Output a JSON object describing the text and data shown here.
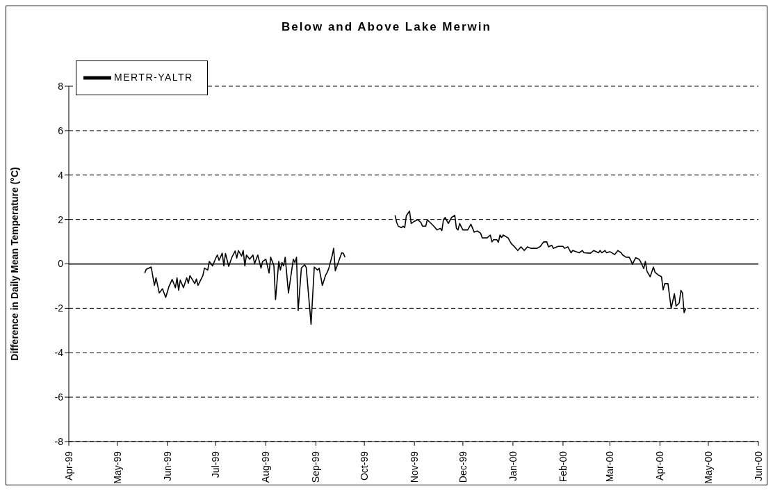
{
  "chart_data": {
    "type": "line",
    "title": "Below and Above Lake Merwin",
    "ylabel": "Difference in Daily Mean Temperature (°C)",
    "xlim": [
      "1999-04-01",
      "2000-06-01"
    ],
    "xticks": [
      {
        "value": "1999-04-01",
        "label": "Apr-99"
      },
      {
        "value": "1999-05-01",
        "label": "May-99"
      },
      {
        "value": "1999-06-01",
        "label": "Jun-99"
      },
      {
        "value": "1999-07-01",
        "label": "Jul-99"
      },
      {
        "value": "1999-08-01",
        "label": "Aug-99"
      },
      {
        "value": "1999-09-01",
        "label": "Sep-99"
      },
      {
        "value": "1999-10-01",
        "label": "Oct-99"
      },
      {
        "value": "1999-11-01",
        "label": "Nov-99"
      },
      {
        "value": "1999-12-01",
        "label": "Dec-99"
      },
      {
        "value": "2000-01-01",
        "label": "Jan-00"
      },
      {
        "value": "2000-02-01",
        "label": "Feb-00"
      },
      {
        "value": "2000-03-01",
        "label": "Mar-00"
      },
      {
        "value": "2000-04-01",
        "label": "Apr-00"
      },
      {
        "value": "2000-05-01",
        "label": "May-00"
      },
      {
        "value": "2000-06-01",
        "label": "Jun-00"
      }
    ],
    "ylim": [
      -8,
      8
    ],
    "yticks": [
      -8,
      -6,
      -4,
      -2,
      0,
      2,
      4,
      6,
      8
    ],
    "grid": "y",
    "legend": "top left",
    "marker": "none",
    "line_style": "solid",
    "ref_lines": [
      {
        "axis": "y",
        "value": 0,
        "color": "#808080"
      }
    ],
    "x": [
      "1999-05-18",
      "1999-05-19",
      "1999-05-22",
      "1999-05-24",
      "1999-05-25",
      "1999-05-27",
      "1999-05-29",
      "1999-05-31",
      "1999-06-02",
      "1999-06-04",
      "1999-06-06",
      "1999-06-07",
      "1999-06-08",
      "1999-06-09",
      "1999-06-11",
      "1999-06-13",
      "1999-06-14",
      "1999-06-15",
      "1999-06-18",
      "1999-06-19",
      "1999-06-20",
      "1999-06-23",
      "1999-06-24",
      "1999-06-26",
      "1999-06-27",
      "1999-06-29",
      "1999-07-01",
      "1999-07-02",
      "1999-07-03",
      "1999-07-05",
      "1999-07-06",
      "1999-07-07",
      "1999-07-09",
      "1999-07-11",
      "1999-07-13",
      "1999-07-14",
      "1999-07-15",
      "1999-07-17",
      "1999-07-18",
      "1999-07-19",
      "1999-07-20",
      "1999-07-22",
      "1999-07-24",
      "1999-07-25",
      "1999-07-27",
      "1999-07-29",
      "1999-07-30",
      "1999-08-01",
      "1999-08-03",
      "1999-08-04",
      "1999-08-06",
      "1999-08-07",
      "1999-08-09",
      "1999-08-10",
      "1999-08-11",
      "1999-08-12",
      "1999-08-13",
      "1999-08-15",
      "1999-08-18",
      "1999-08-19",
      "1999-08-20",
      "1999-08-21",
      "1999-08-23",
      "1999-08-25",
      "1999-08-26",
      "1999-08-29",
      "1999-08-31",
      "1999-09-02",
      "1999-09-03",
      "1999-09-05",
      "1999-09-07",
      "1999-09-08",
      "1999-09-09",
      "1999-09-11",
      "1999-09-12",
      "1999-09-13",
      "1999-09-16",
      "1999-09-17",
      "1999-09-18",
      "1999-09-19",
      "1999-10-05",
      "1999-10-20",
      "1999-10-21",
      "1999-10-22",
      "1999-10-24",
      "1999-10-25",
      "1999-10-26",
      "1999-10-27",
      "1999-10-29",
      "1999-10-30",
      "1999-11-01",
      "1999-11-03",
      "1999-11-05",
      "1999-11-06",
      "1999-11-08",
      "1999-11-09",
      "1999-11-13",
      "1999-11-15",
      "1999-11-17",
      "1999-11-18",
      "1999-11-19",
      "1999-11-20",
      "1999-11-22",
      "1999-11-24",
      "1999-11-26",
      "1999-11-27",
      "1999-11-28",
      "1999-11-29",
      "1999-12-01",
      "1999-12-03",
      "1999-12-04",
      "1999-12-06",
      "1999-12-08",
      "1999-12-10",
      "1999-12-12",
      "1999-12-13",
      "1999-12-16",
      "1999-12-18",
      "1999-12-19",
      "1999-12-20",
      "1999-12-22",
      "1999-12-23",
      "1999-12-24",
      "1999-12-25",
      "1999-12-26",
      "1999-12-29",
      "1999-12-31",
      "2000-01-02",
      "2000-01-04",
      "2000-01-06",
      "2000-01-08",
      "2000-01-10",
      "2000-01-12",
      "2000-01-16",
      "2000-01-18",
      "2000-01-20",
      "2000-01-22",
      "2000-01-23",
      "2000-01-25",
      "2000-01-26",
      "2000-01-29",
      "2000-02-01",
      "2000-02-02",
      "2000-02-04",
      "2000-02-06",
      "2000-02-07",
      "2000-02-11",
      "2000-02-13",
      "2000-02-14",
      "2000-02-18",
      "2000-02-20",
      "2000-02-23",
      "2000-02-24",
      "2000-02-25",
      "2000-02-27",
      "2000-02-28",
      "2000-03-01",
      "2000-03-04",
      "2000-03-06",
      "2000-03-08",
      "2000-03-09",
      "2000-03-11",
      "2000-03-13",
      "2000-03-14",
      "2000-03-15",
      "2000-03-17",
      "2000-03-19",
      "2000-03-20",
      "2000-03-22",
      "2000-03-23",
      "2000-03-24",
      "2000-03-26",
      "2000-03-28",
      "2000-03-29",
      "2000-03-31",
      "2000-04-02",
      "2000-04-03",
      "2000-04-04",
      "2000-04-06",
      "2000-04-08",
      "2000-04-10",
      "2000-04-11",
      "2000-04-13",
      "2000-04-14",
      "2000-04-15",
      "2000-04-16",
      "2000-04-17"
    ],
    "series": [
      {
        "name": "MERTR-YALTR",
        "color": "#000000",
        "values": [
          -0.41,
          -0.24,
          -0.14,
          -0.97,
          -0.63,
          -1.31,
          -1.12,
          -1.51,
          -1.02,
          -0.7,
          -1.07,
          -0.63,
          -1.19,
          -0.73,
          -1.07,
          -0.63,
          -0.87,
          -0.53,
          -0.89,
          -0.68,
          -0.97,
          -0.53,
          -0.19,
          -0.28,
          0.11,
          -0.09,
          0.26,
          0.4,
          0.16,
          0.48,
          -0.09,
          0.47,
          -0.11,
          0.3,
          0.58,
          0.26,
          0.6,
          0.35,
          0.6,
          -0.09,
          0.4,
          0.21,
          0.4,
          0.01,
          0.4,
          -0.19,
          0.11,
          0.21,
          -0.41,
          0.3,
          -0.09,
          -1.61,
          0.11,
          -0.28,
          0.06,
          -0.09,
          0.3,
          -1.31,
          0.21,
          0.06,
          0.3,
          -2.1,
          -0.19,
          -0.04,
          -0.16,
          -2.72,
          -0.14,
          -0.28,
          -0.19,
          -0.97,
          -0.51,
          -0.38,
          -0.2,
          0.35,
          0.7,
          -0.31,
          0.3,
          0.5,
          0.48,
          0.3,
          null,
          2.19,
          1.87,
          1.7,
          1.63,
          1.7,
          1.63,
          2.17,
          2.38,
          1.82,
          1.92,
          1.99,
          1.87,
          1.7,
          1.7,
          1.99,
          1.7,
          1.53,
          1.6,
          1.5,
          1.99,
          2.09,
          1.82,
          2.09,
          2.19,
          1.6,
          1.53,
          1.82,
          1.53,
          1.53,
          1.53,
          1.79,
          1.43,
          1.48,
          1.38,
          1.17,
          1.17,
          1.3,
          0.99,
          1.09,
          1.09,
          0.97,
          1.3,
          1.19,
          1.3,
          1.17,
          0.91,
          0.77,
          0.6,
          0.77,
          0.6,
          0.77,
          0.7,
          0.7,
          0.79,
          0.99,
          0.99,
          0.77,
          0.84,
          0.7,
          0.79,
          0.79,
          0.7,
          0.77,
          0.5,
          0.6,
          0.5,
          0.6,
          0.5,
          0.48,
          0.6,
          0.5,
          0.6,
          0.5,
          0.6,
          0.5,
          0.55,
          0.42,
          0.6,
          0.5,
          0.4,
          0.3,
          0.3,
          0.16,
          -0.01,
          0.28,
          0.21,
          0.11,
          -0.21,
          0.11,
          -0.33,
          -0.58,
          -0.14,
          -0.38,
          -0.5,
          -0.58,
          -1.17,
          -0.89,
          -0.89,
          -2.0,
          -1.34,
          -1.9,
          -1.76,
          -1.19,
          -1.31,
          -2.2,
          -2.0
        ]
      }
    ]
  }
}
